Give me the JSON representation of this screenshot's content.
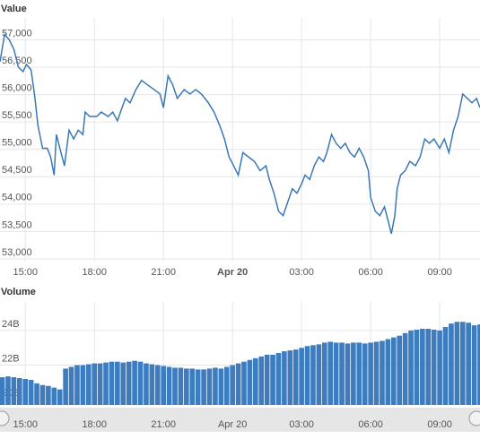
{
  "chart_data": [
    {
      "type": "line",
      "title": "Value",
      "color": "#3a78b5",
      "grid": true,
      "x": [
        13.9,
        14.1,
        14.3,
        14.5,
        14.7,
        14.9,
        15.05,
        15.25,
        15.4,
        15.55,
        15.75,
        15.95,
        16.1,
        16.25,
        16.35,
        16.5,
        16.7,
        16.9,
        17.1,
        17.3,
        17.5,
        17.6,
        17.8,
        18.1,
        18.3,
        18.6,
        18.8,
        19.0,
        19.2,
        19.35,
        19.55,
        19.8,
        20.05,
        20.3,
        20.6,
        20.85,
        21.0,
        21.2,
        21.4,
        21.6,
        21.9,
        22.15,
        22.4,
        22.65,
        22.95,
        23.2,
        23.45,
        23.65,
        23.85,
        24.05,
        24.25,
        24.45,
        24.7,
        24.95,
        25.2,
        25.45,
        25.6,
        25.8,
        26.0,
        26.2,
        26.4,
        26.6,
        26.8,
        27.0,
        27.15,
        27.35,
        27.55,
        27.75,
        27.95,
        28.1,
        28.3,
        28.5,
        28.7,
        28.9,
        29.1,
        29.3,
        29.5,
        29.7,
        29.9,
        30.0,
        30.2,
        30.4,
        30.6,
        30.75,
        30.9,
        31.05,
        31.15,
        31.3,
        31.5,
        31.7,
        31.95,
        32.15,
        32.35,
        32.55,
        32.75,
        33.0,
        33.2,
        33.4,
        33.6,
        33.8,
        34.0,
        34.2,
        34.4,
        34.6,
        34.75
      ],
      "values": [
        56600,
        57100,
        57000,
        56830,
        56500,
        56420,
        56550,
        56450,
        56000,
        55430,
        55020,
        55020,
        54860,
        54530,
        55270,
        55020,
        54700,
        55350,
        55190,
        55350,
        55270,
        55680,
        55600,
        55600,
        55680,
        55600,
        55680,
        55520,
        55760,
        55930,
        55850,
        56090,
        56260,
        56180,
        56090,
        56010,
        55760,
        56340,
        56180,
        55930,
        56090,
        56010,
        56090,
        56010,
        55850,
        55680,
        55430,
        55190,
        54860,
        54700,
        54530,
        54940,
        54860,
        54780,
        54610,
        54700,
        54450,
        54200,
        53870,
        53790,
        54040,
        54280,
        54200,
        54370,
        54530,
        54450,
        54700,
        54860,
        54780,
        54940,
        55270,
        55110,
        55020,
        55110,
        54940,
        54860,
        55020,
        54860,
        54610,
        54120,
        53870,
        53790,
        53950,
        53710,
        53460,
        53790,
        54280,
        54530,
        54610,
        54780,
        54700,
        54860,
        55190,
        55110,
        55190,
        55020,
        55190,
        54940,
        55350,
        55600,
        56010,
        55930,
        55850,
        55930,
        55760
      ],
      "xlim": [
        13.9,
        34.75
      ],
      "xticks": [
        {
          "value": 15,
          "label": "15:00"
        },
        {
          "value": 18,
          "label": "18:00"
        },
        {
          "value": 21,
          "label": "21:00"
        },
        {
          "value": 24,
          "label": "Apr 20"
        },
        {
          "value": 27,
          "label": "03:00"
        },
        {
          "value": 30,
          "label": "06:00"
        },
        {
          "value": 33,
          "label": "09:00"
        }
      ],
      "ylim": [
        52950,
        57400
      ],
      "yticks": [
        {
          "value": 53000,
          "label": "53,000"
        },
        {
          "value": 53500,
          "label": "53,500"
        },
        {
          "value": 54000,
          "label": "54,000"
        },
        {
          "value": 54500,
          "label": "54,500"
        },
        {
          "value": 55000,
          "label": "55,000"
        },
        {
          "value": 55500,
          "label": "55,500"
        },
        {
          "value": 56000,
          "label": "56,000"
        },
        {
          "value": 56500,
          "label": "56,500"
        },
        {
          "value": 57000,
          "label": "57,000"
        }
      ]
    },
    {
      "type": "bar",
      "title": "Volume",
      "color": "#3d7dbf",
      "grid": true,
      "x": [
        14,
        14.25,
        14.5,
        14.75,
        15,
        15.25,
        15.5,
        15.75,
        16,
        16.25,
        16.5,
        16.75,
        17,
        17.25,
        17.5,
        17.75,
        18,
        18.25,
        18.5,
        18.75,
        19,
        19.25,
        19.5,
        19.75,
        20,
        20.25,
        20.5,
        20.75,
        21,
        21.25,
        21.5,
        21.75,
        22,
        22.25,
        22.5,
        22.75,
        23,
        23.25,
        23.5,
        23.75,
        24,
        24.25,
        24.5,
        24.75,
        25,
        25.25,
        25.5,
        25.75,
        26,
        26.25,
        26.5,
        26.75,
        27,
        27.25,
        27.5,
        27.75,
        28,
        28.25,
        28.5,
        28.75,
        29,
        29.25,
        29.5,
        29.75,
        30,
        30.25,
        30.5,
        30.75,
        31,
        31.25,
        31.5,
        31.75,
        32,
        32.25,
        32.5,
        32.75,
        33,
        33.25,
        33.5,
        33.75,
        34,
        34.25,
        34.5,
        34.75
      ],
      "values": [
        21.3,
        21.35,
        21.3,
        21.25,
        21.2,
        21.15,
        20.95,
        20.85,
        20.8,
        20.7,
        20.6,
        21.8,
        21.9,
        22.0,
        22.0,
        22.05,
        22.1,
        22.1,
        22.15,
        22.2,
        22.2,
        22.15,
        22.2,
        22.25,
        22.2,
        22.1,
        22.05,
        22.0,
        21.95,
        21.9,
        21.85,
        21.85,
        21.8,
        21.8,
        21.75,
        21.75,
        21.8,
        21.85,
        21.8,
        21.9,
        22.0,
        22.1,
        22.2,
        22.3,
        22.4,
        22.5,
        22.6,
        22.6,
        22.7,
        22.8,
        22.85,
        22.9,
        23.0,
        23.1,
        23.15,
        23.2,
        23.3,
        23.35,
        23.3,
        23.3,
        23.25,
        23.3,
        23.3,
        23.25,
        23.3,
        23.35,
        23.4,
        23.5,
        23.6,
        23.7,
        23.85,
        24.0,
        24.05,
        24.1,
        24.1,
        24.05,
        24.0,
        24.2,
        24.4,
        24.5,
        24.5,
        24.45,
        24.3,
        24.35
      ],
      "xlim": [
        13.9,
        34.75
      ],
      "xticks": [
        {
          "value": 15,
          "label": "15:00"
        },
        {
          "value": 18,
          "label": "18:00"
        },
        {
          "value": 21,
          "label": "21:00"
        },
        {
          "value": 24,
          "label": "Apr 20"
        },
        {
          "value": 27,
          "label": "03:00"
        },
        {
          "value": 30,
          "label": "06:00"
        },
        {
          "value": 33,
          "label": "09:00"
        }
      ],
      "ylim": [
        19.7,
        25.65
      ],
      "yticks": [
        {
          "value": 20,
          "label": "20B"
        },
        {
          "value": 22,
          "label": "22B"
        },
        {
          "value": 24,
          "label": "24B"
        }
      ]
    }
  ]
}
